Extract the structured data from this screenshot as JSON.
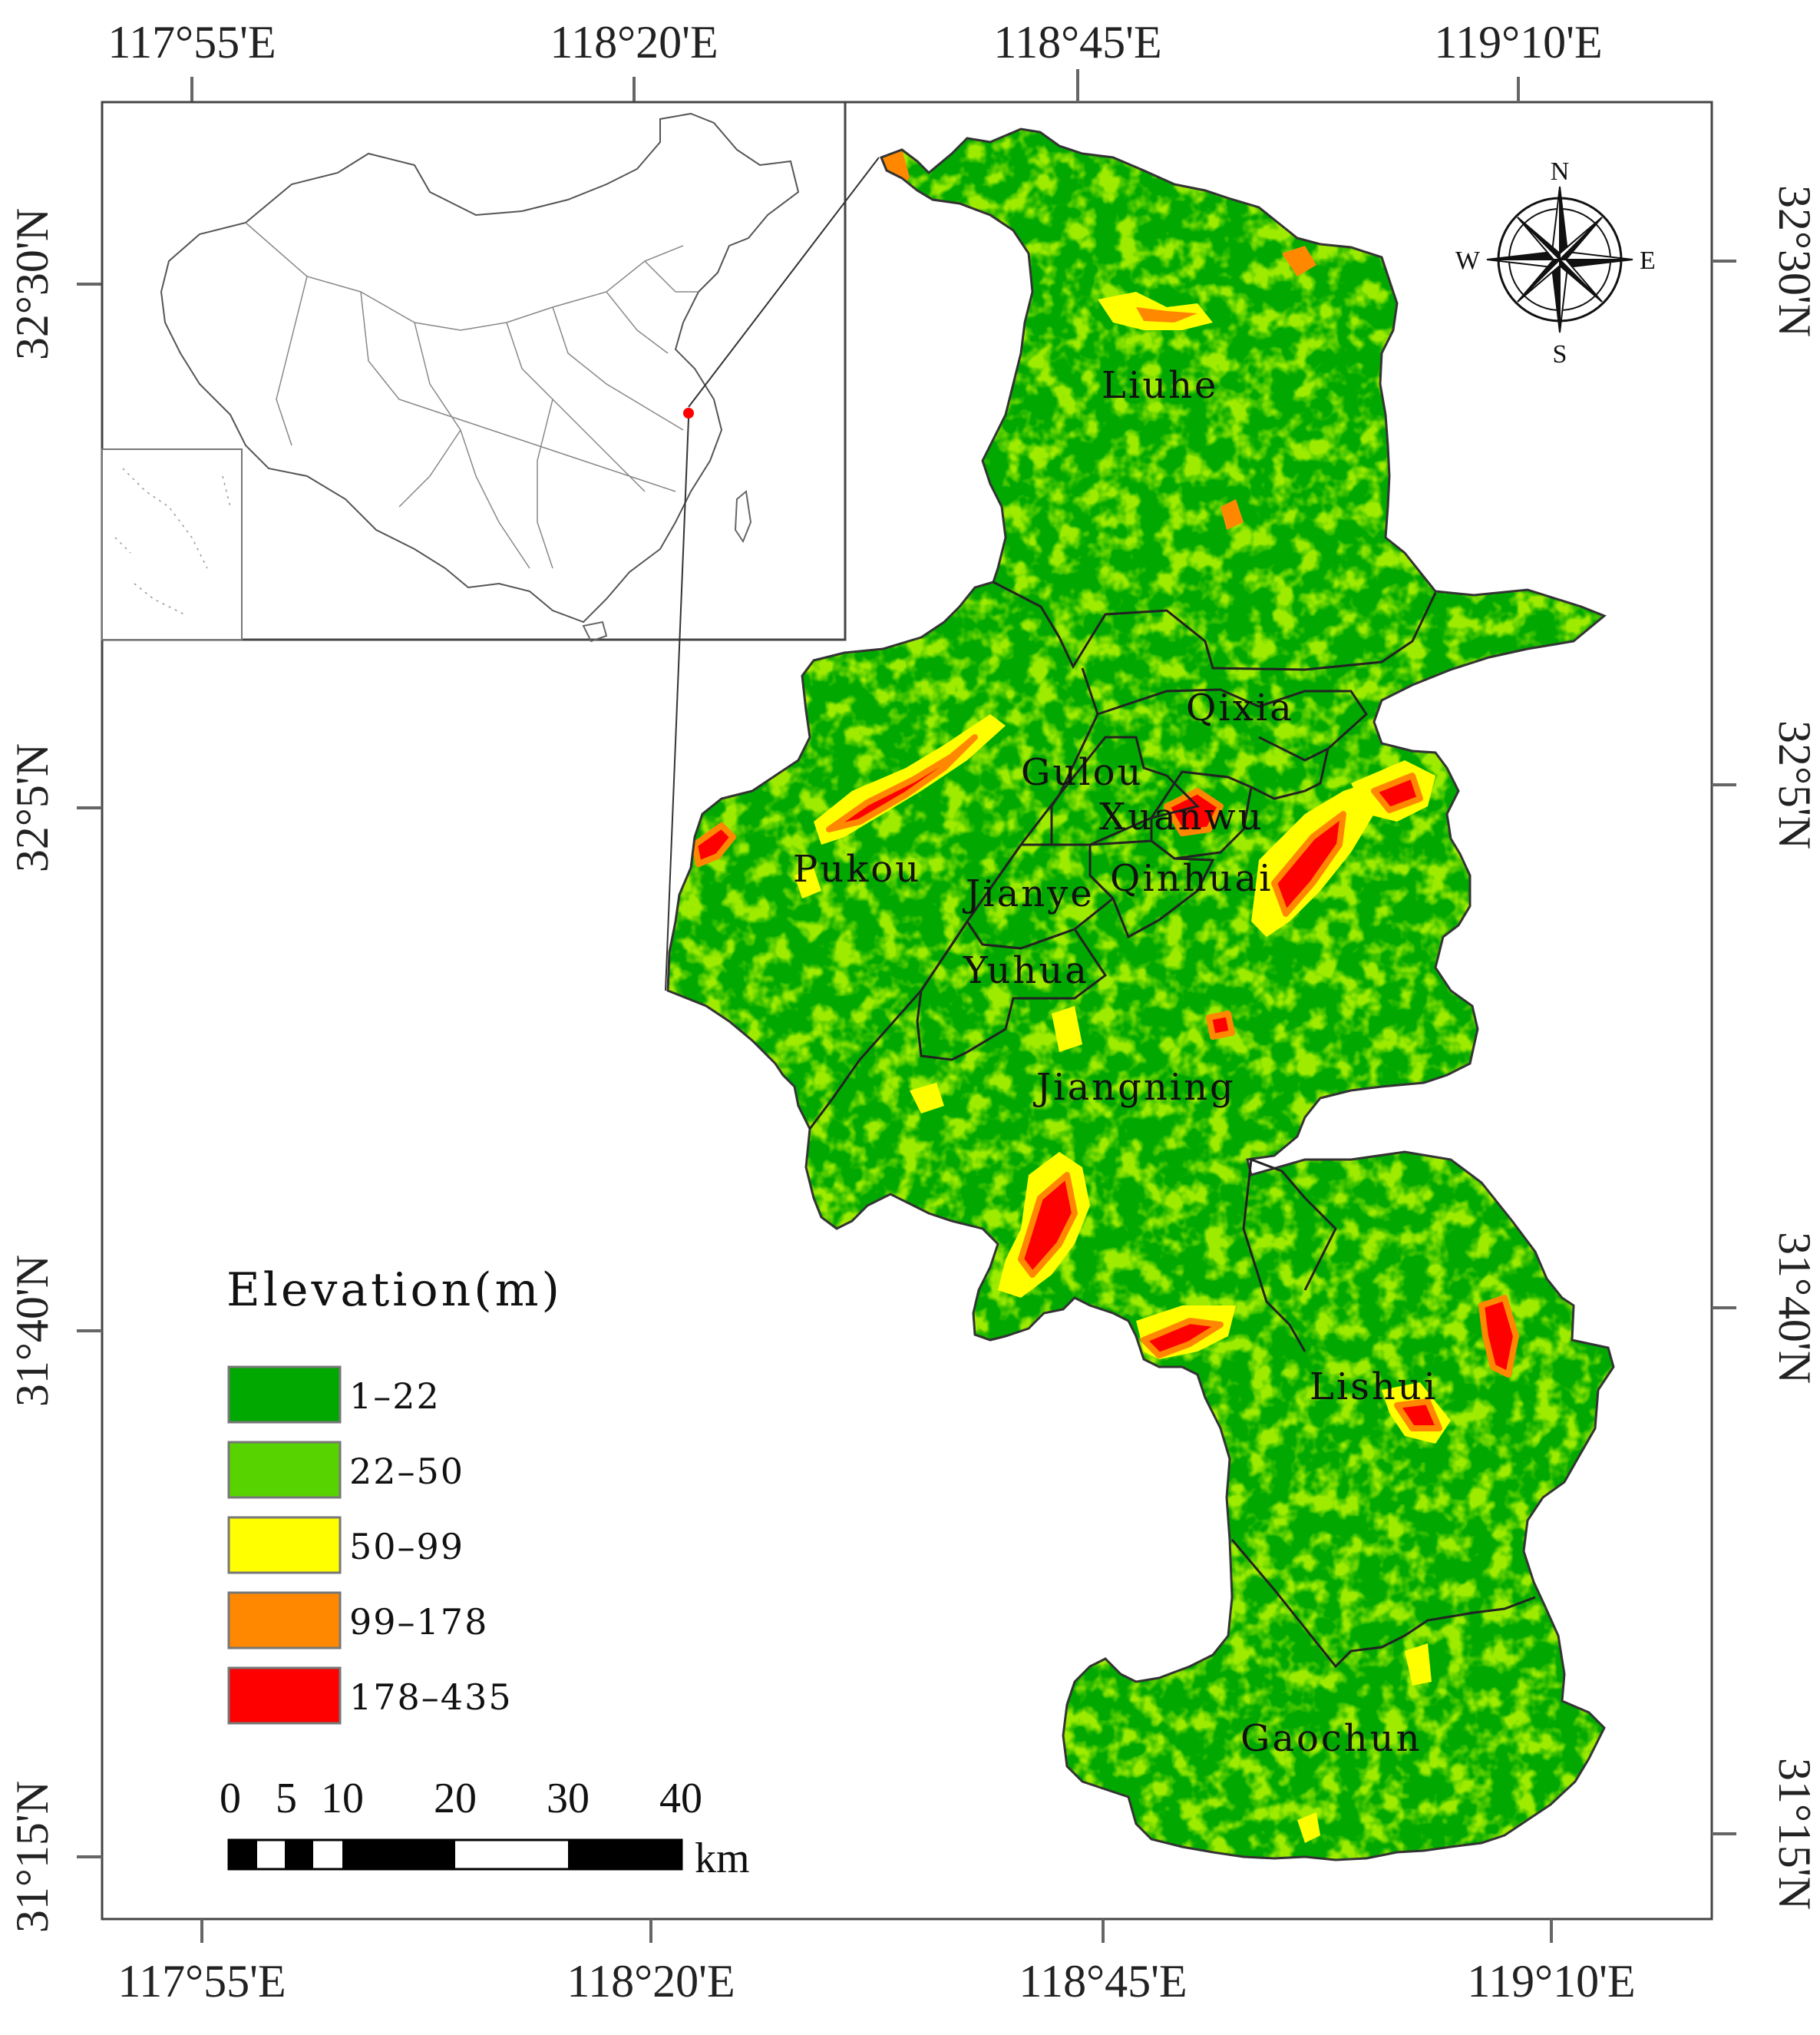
{
  "map": {
    "longitude_labels": [
      "117°55'E",
      "118°20'E",
      "118°45'E",
      "119°10'E"
    ],
    "latitude_labels": [
      "32°30'N",
      "32°5'N",
      "31°40'N",
      "31°15'N"
    ],
    "districts": [
      "Liuhe",
      "Qixia",
      "Gulou",
      "Xuanwu",
      "Pukou",
      "Jianye",
      "Qinhuai",
      "Yuhua",
      "Jiangning",
      "Lishui",
      "Gaochun"
    ]
  },
  "legend": {
    "title": "Elevation(m)",
    "classes": [
      {
        "label": "1–22",
        "color": "#00a800"
      },
      {
        "label": "22–50",
        "color": "#57d400"
      },
      {
        "label": "50–99",
        "color": "#ffff00"
      },
      {
        "label": "99–178",
        "color": "#ff8800"
      },
      {
        "label": "178–435",
        "color": "#ff0000"
      }
    ]
  },
  "scale_bar": {
    "ticks": [
      "0",
      "5",
      "10",
      "20",
      "30",
      "40"
    ],
    "unit": "km"
  },
  "north_arrow": {
    "labels": {
      "n": "N",
      "s": "S",
      "e": "E",
      "w": "W"
    }
  },
  "inset": {
    "highlight_color": "#ff0000"
  }
}
